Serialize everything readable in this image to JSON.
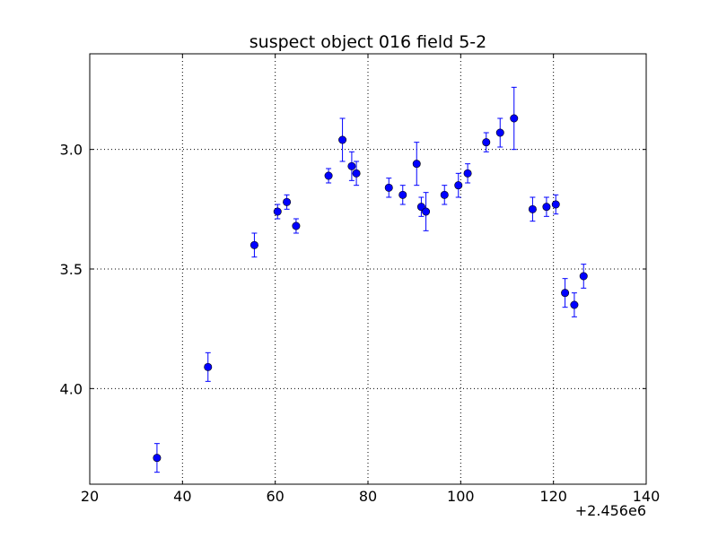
{
  "chart_data": {
    "type": "scatter",
    "title": "suspect object 016 field 5-2",
    "xlabel": "",
    "ylabel": "",
    "x_offset_label": "+2.456e6",
    "xlim": [
      20,
      140
    ],
    "ylim": [
      4.4,
      2.6
    ],
    "y_inverted": true,
    "grid": true,
    "grid_style": "dotted",
    "xticks": [
      20,
      40,
      60,
      80,
      100,
      120,
      140
    ],
    "xtick_labels": [
      "20",
      "40",
      "60",
      "80",
      "100",
      "120",
      "140"
    ],
    "yticks": [
      3.0,
      3.5,
      4.0
    ],
    "ytick_labels": [
      "3.0",
      "3.5",
      "4.0"
    ],
    "marker_color": "#0000ff",
    "error_bar_color": "#0000ff",
    "points": [
      {
        "x": 34.5,
        "y": 4.29,
        "err": 0.06
      },
      {
        "x": 45.5,
        "y": 3.91,
        "err": 0.06
      },
      {
        "x": 55.5,
        "y": 3.4,
        "err": 0.05
      },
      {
        "x": 60.5,
        "y": 3.26,
        "err": 0.03
      },
      {
        "x": 62.5,
        "y": 3.22,
        "err": 0.03
      },
      {
        "x": 64.5,
        "y": 3.32,
        "err": 0.03
      },
      {
        "x": 71.5,
        "y": 3.11,
        "err": 0.03
      },
      {
        "x": 74.5,
        "y": 2.96,
        "err": 0.09
      },
      {
        "x": 76.5,
        "y": 3.07,
        "err": 0.06
      },
      {
        "x": 77.5,
        "y": 3.1,
        "err": 0.05
      },
      {
        "x": 84.5,
        "y": 3.16,
        "err": 0.04
      },
      {
        "x": 87.5,
        "y": 3.19,
        "err": 0.04
      },
      {
        "x": 90.5,
        "y": 3.06,
        "err": 0.09
      },
      {
        "x": 91.5,
        "y": 3.24,
        "err": 0.04
      },
      {
        "x": 92.5,
        "y": 3.26,
        "err": 0.08
      },
      {
        "x": 96.5,
        "y": 3.19,
        "err": 0.04
      },
      {
        "x": 99.5,
        "y": 3.15,
        "err": 0.05
      },
      {
        "x": 101.5,
        "y": 3.1,
        "err": 0.04
      },
      {
        "x": 105.5,
        "y": 2.97,
        "err": 0.04
      },
      {
        "x": 108.5,
        "y": 2.93,
        "err": 0.06
      },
      {
        "x": 111.5,
        "y": 2.87,
        "err": 0.13
      },
      {
        "x": 115.5,
        "y": 3.25,
        "err": 0.05
      },
      {
        "x": 118.5,
        "y": 3.24,
        "err": 0.04
      },
      {
        "x": 120.5,
        "y": 3.23,
        "err": 0.04
      },
      {
        "x": 122.5,
        "y": 3.6,
        "err": 0.06
      },
      {
        "x": 124.5,
        "y": 3.65,
        "err": 0.05
      },
      {
        "x": 126.5,
        "y": 3.53,
        "err": 0.05
      }
    ]
  }
}
